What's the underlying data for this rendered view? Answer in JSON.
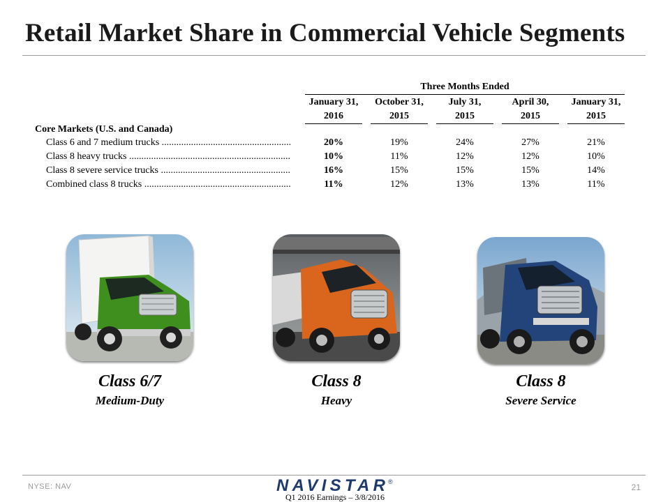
{
  "title": "Retail Market Share in Commercial Vehicle Segments",
  "table": {
    "group_header": "Three Months Ended",
    "columns": [
      {
        "line1": "January 31,",
        "line2": "2016"
      },
      {
        "line1": "October 31,",
        "line2": "2015"
      },
      {
        "line1": "July 31,",
        "line2": "2015"
      },
      {
        "line1": "April 30,",
        "line2": "2015"
      },
      {
        "line1": "January 31,",
        "line2": "2015"
      }
    ],
    "section": "Core Markets (U.S. and Canada)",
    "rows": [
      {
        "label": "Class 6 and 7 medium trucks ................................................................................",
        "values": [
          "20%",
          "19%",
          "24%",
          "27%",
          "21%"
        ]
      },
      {
        "label": "Class 8 heavy trucks ...............................................................................................",
        "values": [
          "10%",
          "11%",
          "12%",
          "12%",
          "10%"
        ]
      },
      {
        "label": "Class 8 severe service trucks ..................................................................................",
        "values": [
          "16%",
          "15%",
          "15%",
          "15%",
          "14%"
        ]
      },
      {
        "label": "Combined class 8 trucks .........................................................................................",
        "values": [
          "11%",
          "12%",
          "13%",
          "13%",
          "11%"
        ]
      }
    ]
  },
  "segments": [
    {
      "title": "Class 6/7",
      "subtitle": "Medium-Duty"
    },
    {
      "title": "Class 8",
      "subtitle": "Heavy"
    },
    {
      "title": "Class 8",
      "subtitle": "Severe Service"
    }
  ],
  "footer": {
    "ticker": "NYSE: NAV",
    "logo_text": "NAVISTAR",
    "registered": "®",
    "event": "Q1 2016 Earnings – 3/8/2016",
    "page_number": "21"
  },
  "colors": {
    "rule": "#9a9a9a",
    "logo_blue": "#1f3a6e",
    "truck_green": "#3f8f1e",
    "truck_orange": "#d9661c",
    "truck_blue": "#23447a"
  }
}
